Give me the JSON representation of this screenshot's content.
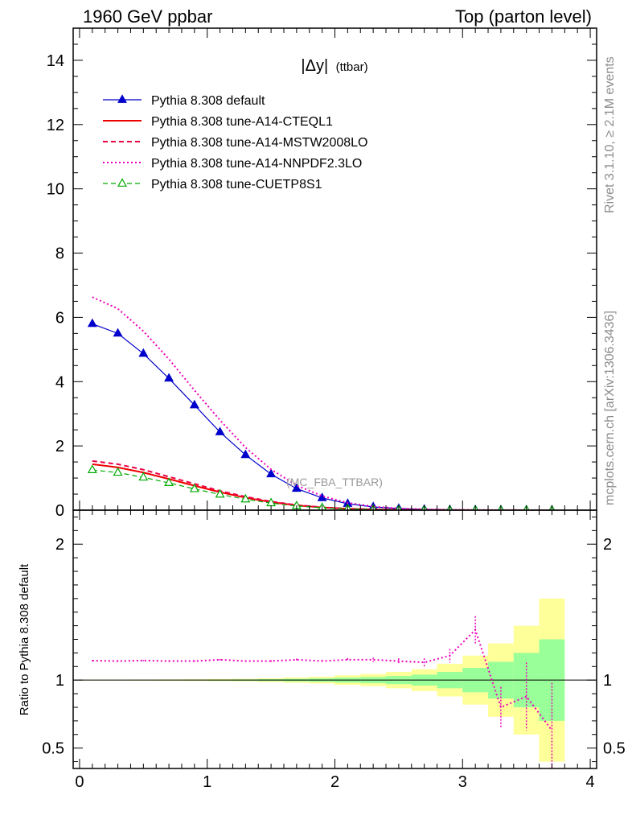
{
  "header": {
    "left": "1960 GeV ppbar",
    "right": "Top (parton level)"
  },
  "side": {
    "rivet": "Rivet 3.1.10, ≥ 2.1M events",
    "mcplots": "mcplots.cern.ch [arXiv:1306.3436]"
  },
  "chart_data": {
    "type": "line",
    "title": "|Δy| (ttbar)",
    "title_main": "|Δy|",
    "title_sub": "(ttbar)",
    "watermark": "(MC_FBA_TTBAR)",
    "grid": false,
    "legend_position": "top-left",
    "x": [
      0.1,
      0.3,
      0.5,
      0.7,
      0.9,
      1.1,
      1.3,
      1.5,
      1.7,
      1.9,
      2.1,
      2.3,
      2.5,
      2.7,
      2.9,
      3.1,
      3.3,
      3.5,
      3.7
    ],
    "xlim": [
      -0.05,
      4.05
    ],
    "xticks": [
      0,
      1,
      2,
      3,
      4
    ],
    "main": {
      "ylim": [
        0,
        15
      ],
      "yticks": [
        0,
        2,
        4,
        6,
        8,
        10,
        12,
        14
      ],
      "series": [
        {
          "name": "Pythia 8.308 default",
          "color": "#0000cc",
          "style": "solid-triangle",
          "values": [
            5.8,
            5.5,
            4.87,
            4.1,
            3.27,
            2.43,
            1.72,
            1.12,
            0.67,
            0.38,
            0.2,
            0.1,
            0.05,
            0.025,
            0.012,
            0.006,
            0.003,
            0.0015,
            0.0008
          ]
        },
        {
          "name": "Pythia 8.308 tune-A14-CTEQL1",
          "color": "#ee0000",
          "style": "solid",
          "values": [
            1.43,
            1.33,
            1.17,
            0.97,
            0.76,
            0.56,
            0.39,
            0.25,
            0.15,
            0.085,
            0.045,
            0.022,
            0.011,
            0.005,
            0.0025,
            0.0012,
            0.0006,
            0.0003,
            0.0001
          ]
        },
        {
          "name": "Pythia 8.308 tune-A14-MSTW2008LO",
          "color": "#ee0044",
          "style": "dashed",
          "values": [
            1.53,
            1.43,
            1.26,
            1.04,
            0.82,
            0.6,
            0.42,
            0.27,
            0.16,
            0.09,
            0.048,
            0.024,
            0.012,
            0.0055,
            0.0027,
            0.0013,
            0.0006,
            0.0003,
            0.0001
          ]
        },
        {
          "name": "Pythia 8.308 tune-A14-NNPDF2.3LO",
          "color": "#ee00bb",
          "style": "dotted",
          "values": [
            6.63,
            6.27,
            5.57,
            4.7,
            3.73,
            2.8,
            1.95,
            1.27,
            0.77,
            0.44,
            0.23,
            0.115,
            0.055,
            0.026,
            0.013,
            0.007,
            0.003,
            0.0015,
            0.0006
          ]
        },
        {
          "name": "Pythia 8.308 tune-CUETP8S1",
          "color": "#00aa00",
          "style": "dashed-open-triangle",
          "values": [
            1.25,
            1.17,
            1.02,
            0.85,
            0.66,
            0.49,
            0.34,
            0.22,
            0.13,
            0.075,
            0.04,
            0.02,
            0.01,
            0.005,
            0.0024,
            0.0012,
            0.0006,
            0.0003,
            0.0001
          ]
        }
      ]
    },
    "ratio": {
      "ylabel": "Ratio to Pythia 8.308 default",
      "ylim": [
        0.35,
        2.25
      ],
      "yticks": [
        0.5,
        1,
        2
      ],
      "ytick_labels": [
        "0.5",
        "1",
        "2"
      ],
      "band_edges": [
        0.0,
        0.2,
        0.4,
        0.6,
        0.8,
        1.0,
        1.2,
        1.4,
        1.6,
        1.8,
        2.0,
        2.2,
        2.4,
        2.6,
        2.8,
        3.0,
        3.2,
        3.4,
        3.6,
        3.8
      ],
      "band_yellow": [
        [
          0.997,
          1.003
        ],
        [
          0.997,
          1.003
        ],
        [
          0.996,
          1.004
        ],
        [
          0.995,
          1.005
        ],
        [
          0.994,
          1.006
        ],
        [
          0.992,
          1.008
        ],
        [
          0.99,
          1.01
        ],
        [
          0.986,
          1.014
        ],
        [
          0.98,
          1.02
        ],
        [
          0.975,
          1.025
        ],
        [
          0.965,
          1.035
        ],
        [
          0.955,
          1.045
        ],
        [
          0.94,
          1.06
        ],
        [
          0.92,
          1.08
        ],
        [
          0.88,
          1.12
        ],
        [
          0.82,
          1.18
        ],
        [
          0.73,
          1.27
        ],
        [
          0.6,
          1.4
        ],
        [
          0.4,
          1.6
        ]
      ],
      "band_green": [
        [
          0.999,
          1.001
        ],
        [
          0.999,
          1.001
        ],
        [
          0.998,
          1.002
        ],
        [
          0.998,
          1.002
        ],
        [
          0.997,
          1.003
        ],
        [
          0.996,
          1.004
        ],
        [
          0.995,
          1.005
        ],
        [
          0.993,
          1.007
        ],
        [
          0.99,
          1.01
        ],
        [
          0.987,
          1.013
        ],
        [
          0.982,
          1.018
        ],
        [
          0.977,
          1.023
        ],
        [
          0.97,
          1.03
        ],
        [
          0.96,
          1.04
        ],
        [
          0.94,
          1.06
        ],
        [
          0.91,
          1.09
        ],
        [
          0.865,
          1.135
        ],
        [
          0.8,
          1.2
        ],
        [
          0.7,
          1.3
        ]
      ],
      "series": [
        {
          "name": "Pythia 8.308 tune-A14-NNPDF2.3LO",
          "color": "#ee00bb",
          "style": "dotted",
          "values": [
            1.143,
            1.14,
            1.144,
            1.14,
            1.14,
            1.15,
            1.14,
            1.14,
            1.15,
            1.14,
            1.15,
            1.15,
            1.14,
            1.13,
            1.18,
            1.37,
            0.8,
            0.88,
            0.63
          ],
          "errors": [
            0.004,
            0.004,
            0.004,
            0.004,
            0.005,
            0.005,
            0.006,
            0.006,
            0.008,
            0.01,
            0.012,
            0.015,
            0.02,
            0.03,
            0.05,
            0.1,
            0.15,
            0.25,
            0.35
          ]
        }
      ]
    }
  }
}
